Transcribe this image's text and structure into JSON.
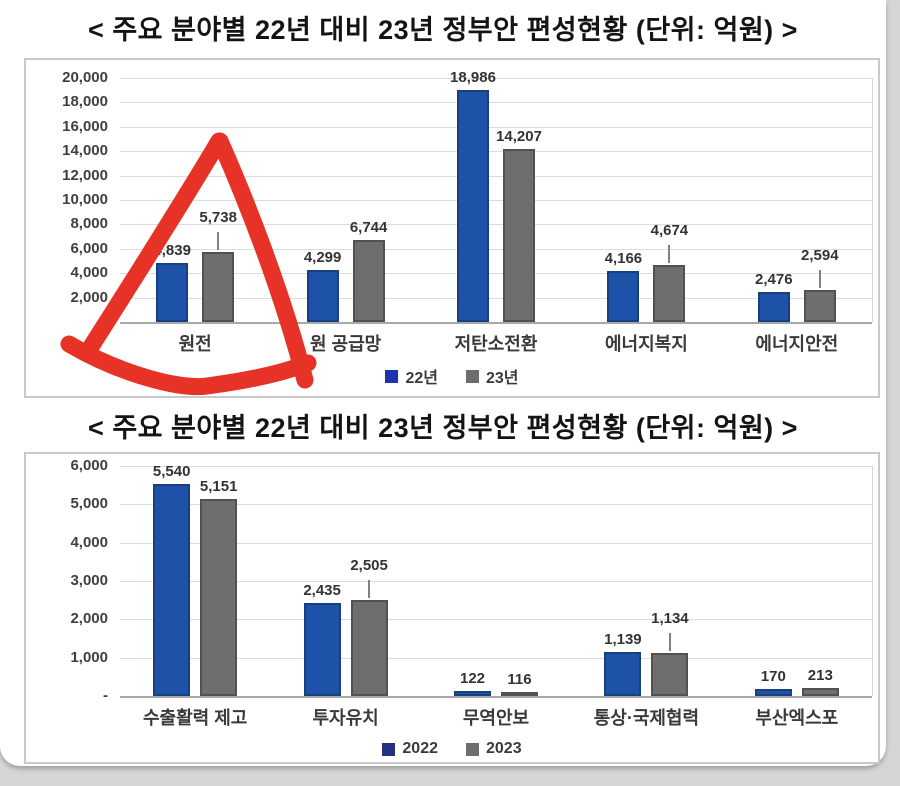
{
  "chart_data": [
    {
      "type": "bar",
      "title": "< 주요 분야별 22년 대비 23년 정부안 편성현황 (단위: 억원) >",
      "categories": [
        "원전",
        "원 공급망",
        "저탄소전환",
        "에너지복지",
        "에너지안전"
      ],
      "series": [
        {
          "name": "22년",
          "values": [
            4839,
            4299,
            18986,
            4166,
            2476
          ],
          "color": "#1e51a8",
          "border": "#16407e",
          "legend_color": "#1d35a8"
        },
        {
          "name": "23년",
          "values": [
            5738,
            6744,
            14207,
            4674,
            2594
          ],
          "color": "#6e6e6e",
          "border": "#515151",
          "legend_color": "#6e6e6e"
        }
      ],
      "ylim": [
        0,
        20000
      ],
      "ytick_step": 2000,
      "zero_tick_label": "-",
      "grid": true,
      "legend_position": "bottom",
      "raised_second_labels": [
        true,
        false,
        false,
        true,
        true
      ],
      "annotation": {
        "shape": "hand-drawn-triangle",
        "color": "#e73327",
        "highlights": "원전"
      }
    },
    {
      "type": "bar",
      "title": "< 주요 분야별 22년 대비 23년 정부안 편성현황 (단위: 억원) >",
      "categories": [
        "수출활력 제고",
        "투자유치",
        "무역안보",
        "통상·국제협력",
        "부산엑스포"
      ],
      "series": [
        {
          "name": "2022",
          "values": [
            5540,
            2435,
            122,
            1139,
            170
          ],
          "color": "#1e51a8",
          "border": "#16407e",
          "legend_color": "#25307f"
        },
        {
          "name": "2023",
          "values": [
            5151,
            2505,
            116,
            1134,
            213
          ],
          "color": "#6e6e6e",
          "border": "#515151",
          "legend_color": "#6e6e6e"
        }
      ],
      "ylim": [
        0,
        6000
      ],
      "ytick_step": 1000,
      "zero_tick_label": "-",
      "grid": true,
      "legend_position": "bottom",
      "raised_second_labels": [
        false,
        true,
        false,
        true,
        false
      ]
    }
  ]
}
